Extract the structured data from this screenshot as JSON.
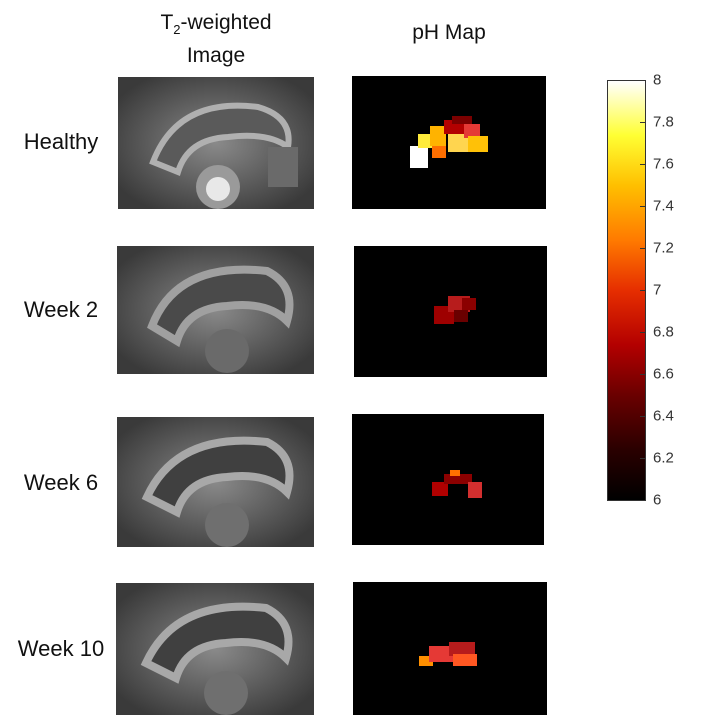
{
  "columns": {
    "t2_prefix": "T",
    "t2_sub": "2",
    "t2_suffix": "-weighted",
    "t2_line2": "Image",
    "ph": "pH Map"
  },
  "rows": [
    {
      "label": "Healthy",
      "ph_level": "high"
    },
    {
      "label": "Week 2",
      "ph_level": "low"
    },
    {
      "label": "Week 6",
      "ph_level": "low"
    },
    {
      "label": "Week 10",
      "ph_level": "low"
    }
  ],
  "colorbar": {
    "colormap": "hot",
    "min": 6,
    "max": 8,
    "ticks": [
      "8",
      "7.8",
      "7.6",
      "7.4",
      "7.2",
      "7",
      "6.8",
      "6.6",
      "6.4",
      "6.2",
      "6"
    ]
  }
}
